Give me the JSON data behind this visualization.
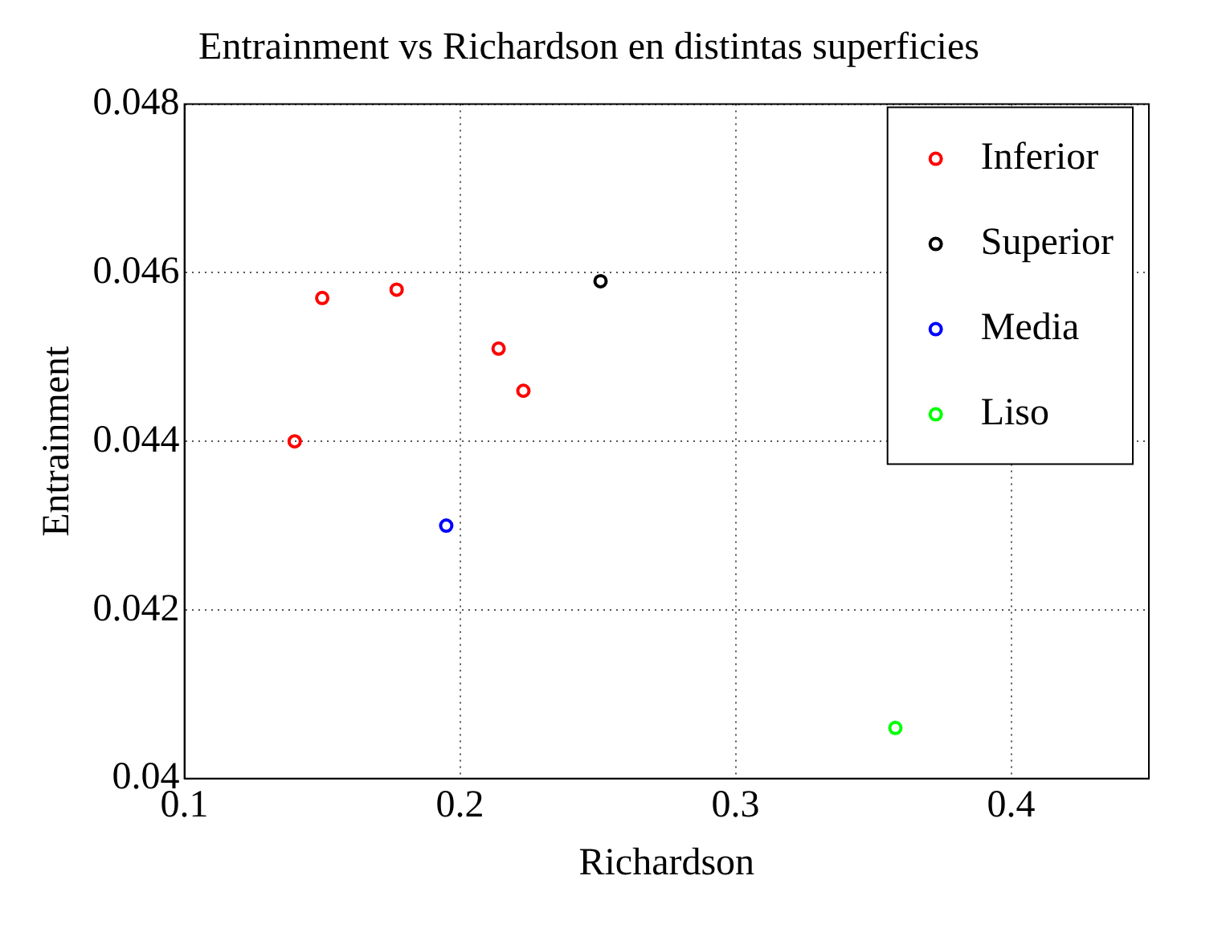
{
  "chart_data": {
    "type": "scatter",
    "title": "Entrainment vs Richardson en distintas superficies",
    "xlabel": "Richardson",
    "ylabel": "Entrainment",
    "xlim": [
      0.1,
      0.45
    ],
    "xticks": [
      0.1,
      0.2,
      0.3,
      0.4
    ],
    "ylim": [
      0.04,
      0.048
    ],
    "yticks": [
      0.04,
      0.042,
      0.044,
      0.046,
      0.048
    ],
    "grid": true,
    "legend": "top right",
    "marker": "circle",
    "series": [
      {
        "name": "Inferior",
        "color": "#ff0000",
        "x": [
          0.14,
          0.15,
          0.177,
          0.214,
          0.223
        ],
        "values": [
          0.044,
          0.0457,
          0.0458,
          0.0451,
          0.0446
        ]
      },
      {
        "name": "Superior",
        "color": "#000000",
        "x": [
          0.251
        ],
        "values": [
          0.0459
        ]
      },
      {
        "name": "Media",
        "color": "#0000ff",
        "x": [
          0.195
        ],
        "values": [
          0.043
        ]
      },
      {
        "name": "Liso",
        "color": "#00ff00",
        "x": [
          0.358
        ],
        "values": [
          0.0406
        ]
      }
    ]
  }
}
